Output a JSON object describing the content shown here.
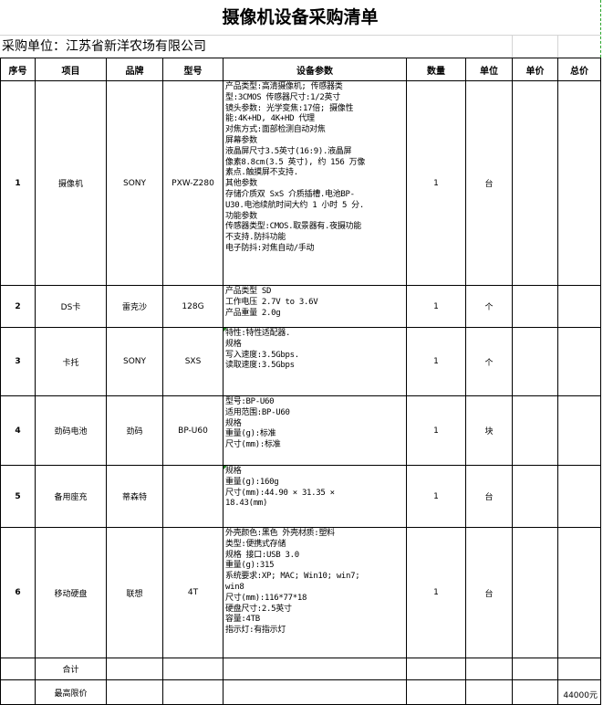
{
  "title": "摄像机设备采购清单",
  "company": "采购单位：江苏省新洋农场有限公司",
  "headers": [
    "序号",
    "项目",
    "品牌",
    "型号",
    "设备参数",
    "数量",
    "单位",
    "单价",
    "总价"
  ],
  "rows": [
    {
      "no": "1",
      "item": "摄像机",
      "brand": "SONY",
      "model": "PXW-Z280",
      "qty": "1",
      "unit": "台",
      "price": "",
      "total": "",
      "spec": [
        "产品类型:高清摄像机; 传感器类",
        "型:3CMOS 传感器尺寸:1/2英寸",
        "镜头参数: 光学变焦:17倍; 摄像性",
        "能:4K+HD, 4K+HD 代理",
        "对焦方式:面部检测自动对焦",
        "屏幕参数",
        "液晶屏尺寸3.5英寸(16:9).液晶屏",
        "像素8.8cm(3.5 英寸), 约 156 万像",
        "素点.触摸屏不支持.",
        "其他参数",
        "存储介质双 SxS 介质插槽.电池BP-",
        "U30.电池续航时间大约 1 小时 5 分.",
        "功能参数",
        "传感器类型:CMOS.取景器有.夜摄功能",
        "不支持.防抖功能",
        "电子防抖:对焦自动/手动"
      ]
    },
    {
      "no": "2",
      "item": "DS卡",
      "brand": "雷克沙",
      "model": "128G",
      "qty": "1",
      "unit": "个",
      "price": "",
      "total": "",
      "spec": [
        "产品类型 SD",
        "工作电压 2.7V to 3.6V",
        "产品重量 2.0g"
      ]
    },
    {
      "no": "3",
      "item": "卡托",
      "brand": "SONY",
      "model": "SXS",
      "qty": "1",
      "unit": "个",
      "price": "",
      "total": "",
      "spec": [
        "",
        "特性:特性适配器.",
        "规格",
        "写入速度:3.5Gbps.",
        "读取速度:3.5Gbps"
      ]
    },
    {
      "no": "4",
      "item": "劲码电池",
      "brand": "劲码",
      "model": "BP-U60",
      "qty": "1",
      "unit": "块",
      "price": "",
      "total": "",
      "spec": [
        "型号:BP-U60",
        "适用范围:BP-U60",
        "规格",
        "重量(g):标准",
        "尺寸(mm):标准"
      ]
    },
    {
      "no": "5",
      "item": "备用座充",
      "brand": "蒂森特",
      "model": "",
      "qty": "1",
      "unit": "台",
      "price": "",
      "total": "",
      "spec": [
        "规格",
        "重量(g):160g",
        "尺寸(mm):44.90 × 31.35 ×",
        "18.43(mm)"
      ]
    },
    {
      "no": "6",
      "item": "移动硬盘",
      "brand": "联想",
      "model": "4T",
      "qty": "1",
      "unit": "台",
      "price": "",
      "total": "",
      "spec": [
        "外壳颜色:黑色 外壳材质:塑料",
        "类型:便携式存储",
        "规格 接口:USB 3.0",
        "重量(g):315",
        "系统要求:XP; MAC; Win10; win7;",
        "win8",
        "尺寸(mm):116*77*18",
        "硬盘尺寸:2.5英寸",
        "容量:4TB",
        "指示灯:有指示灯"
      ]
    }
  ],
  "subtotal_label": "合计",
  "max_price_label": "最高限价",
  "max_price_value": "44000元"
}
